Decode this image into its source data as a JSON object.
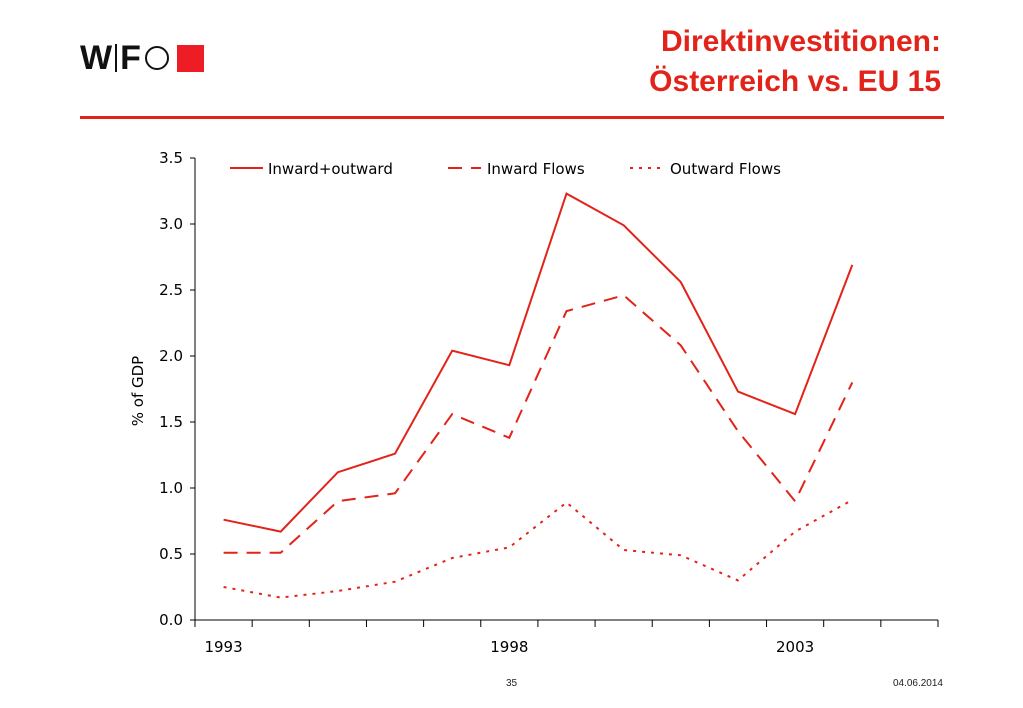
{
  "header": {
    "logo_text_1": "W",
    "logo_text_2": "F",
    "title_line1": "Direktinvestitionen:",
    "title_line2": "Österreich vs. EU 15"
  },
  "footer": {
    "page_number": "35",
    "date": "04.06.2014"
  },
  "colors": {
    "accent": "#e2231a",
    "logo_square": "#ee1c25",
    "text": "#111111"
  },
  "chart_data": {
    "type": "line",
    "x": [
      1993,
      1994,
      1995,
      1996,
      1997,
      1998,
      1999,
      2000,
      2001,
      2002,
      2003,
      2004
    ],
    "series": [
      {
        "name": "Inward+outward",
        "style": "solid",
        "values": [
          0.76,
          0.67,
          1.12,
          1.26,
          2.04,
          1.93,
          3.23,
          2.99,
          2.56,
          1.73,
          1.56,
          2.69
        ]
      },
      {
        "name": "Inward Flows",
        "style": "dashed",
        "values": [
          0.51,
          0.51,
          0.9,
          0.96,
          1.56,
          1.38,
          2.34,
          2.46,
          2.08,
          1.43,
          0.9,
          1.8
        ]
      },
      {
        "name": "Outward Flows",
        "style": "dotted",
        "values": [
          0.25,
          0.17,
          0.22,
          0.29,
          0.47,
          0.55,
          0.89,
          0.53,
          0.49,
          0.3,
          0.67,
          0.91
        ]
      }
    ],
    "xlabel": "",
    "ylabel": "% of GDP",
    "ylim": [
      0,
      3.5
    ],
    "yticks": [
      "0.0",
      "0.5",
      "1.0",
      "1.5",
      "2.0",
      "2.5",
      "3.0",
      "3.5"
    ],
    "xtick_labels": [
      {
        "year": 1993,
        "label": "1993"
      },
      {
        "year": 1998,
        "label": "1998"
      },
      {
        "year": 2003,
        "label": "2003"
      }
    ],
    "legend_placement": "top",
    "grid": false
  }
}
